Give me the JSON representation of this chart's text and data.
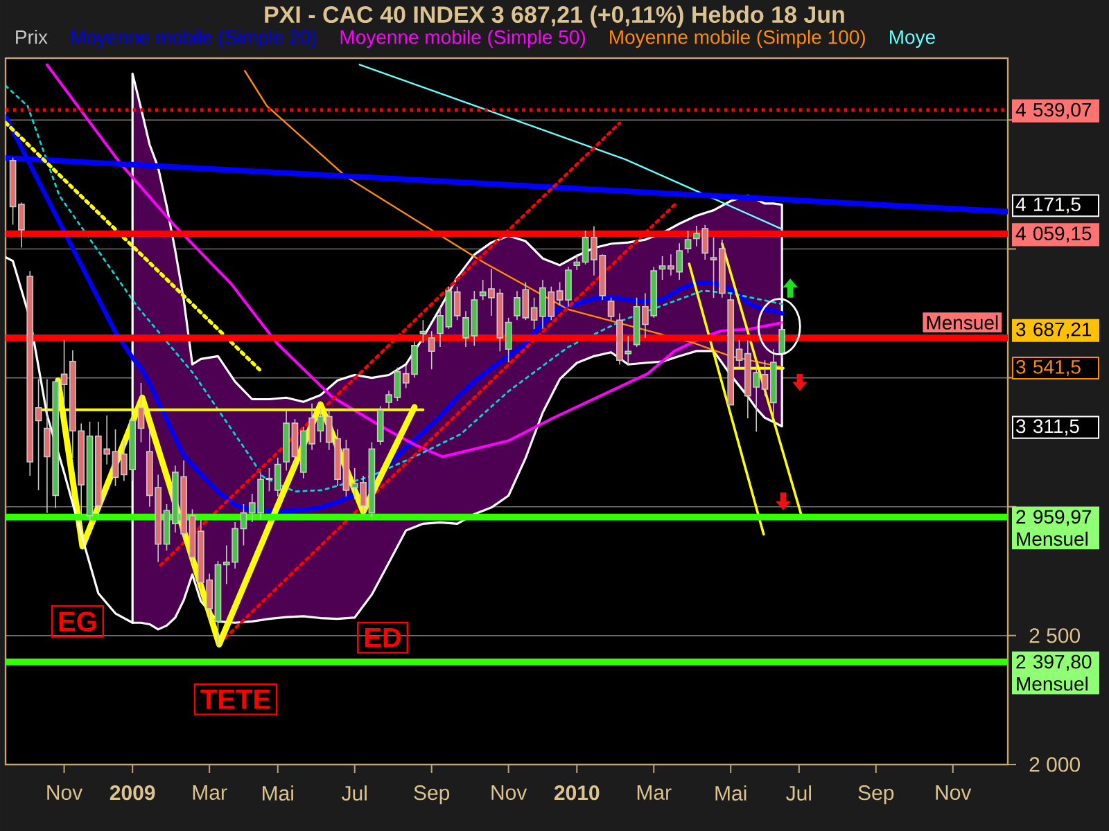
{
  "chart_data": {
    "type": "candlestick",
    "title": "PXI - CAC 40 INDEX    3 687,21 (+0,11%)    Hebdo  18 Jun",
    "xlim": [
      "2008-09-20",
      "2010-12-20"
    ],
    "ylim": [
      2000,
      4740
    ],
    "xticks": [
      {
        "value": "2008-11-07",
        "label": "Nov"
      },
      {
        "value": "2009-01-02",
        "label": "2009"
      },
      {
        "value": "2009-03-06",
        "label": "Mar"
      },
      {
        "value": "2009-05-01",
        "label": "Mai"
      },
      {
        "value": "2009-07-03",
        "label": "Jul"
      },
      {
        "value": "2009-09-04",
        "label": "Sep"
      },
      {
        "value": "2009-11-06",
        "label": "Nov"
      },
      {
        "value": "2010-01-01",
        "label": "2010"
      },
      {
        "value": "2010-03-05",
        "label": "Mar"
      },
      {
        "value": "2010-05-07",
        "label": "Mai"
      },
      {
        "value": "2010-07-02",
        "label": "Jul"
      },
      {
        "value": "2010-09-03",
        "label": "Sep"
      },
      {
        "value": "2010-11-05",
        "label": "Nov"
      }
    ],
    "yticks": [
      {
        "value": 2000,
        "label": "2 000"
      },
      {
        "value": 2500,
        "label": "2 500"
      },
      {
        "value": 3000,
        "label": null
      },
      {
        "value": 3500,
        "label": null
      },
      {
        "value": 4000,
        "label": null
      },
      {
        "value": 4500,
        "label": null
      }
    ],
    "grid": "y",
    "legend": "top left",
    "series": [
      {
        "name": "Prix",
        "type": "candlestick",
        "color": "#c8c8c8",
        "x": [
          "2008-09-26",
          "2008-10-03",
          "2008-10-10",
          "2008-10-17",
          "2008-10-24",
          "2008-10-31",
          "2008-11-07",
          "2008-11-14",
          "2008-11-21",
          "2008-11-28",
          "2008-12-05",
          "2008-12-12",
          "2008-12-19",
          "2008-12-26",
          "2009-01-02",
          "2009-01-09",
          "2009-01-16",
          "2009-01-23",
          "2009-01-30",
          "2009-02-06",
          "2009-02-13",
          "2009-02-20",
          "2009-02-27",
          "2009-03-06",
          "2009-03-13",
          "2009-03-20",
          "2009-03-27",
          "2009-04-03",
          "2009-04-10",
          "2009-04-17",
          "2009-04-24",
          "2009-05-01",
          "2009-05-08",
          "2009-05-15",
          "2009-05-22",
          "2009-05-29",
          "2009-06-05",
          "2009-06-12",
          "2009-06-19",
          "2009-06-26",
          "2009-07-03",
          "2009-07-10",
          "2009-07-17",
          "2009-07-24",
          "2009-07-31",
          "2009-08-07",
          "2009-08-14",
          "2009-08-21",
          "2009-08-28",
          "2009-09-04",
          "2009-09-11",
          "2009-09-18",
          "2009-09-25",
          "2009-10-02",
          "2009-10-09",
          "2009-10-16",
          "2009-10-23",
          "2009-10-30",
          "2009-11-06",
          "2009-11-13",
          "2009-11-20",
          "2009-11-27",
          "2009-12-04",
          "2009-12-11",
          "2009-12-18",
          "2009-12-25",
          "2010-01-01",
          "2010-01-08",
          "2010-01-15",
          "2010-01-22",
          "2010-01-29",
          "2010-02-05",
          "2010-02-12",
          "2010-02-19",
          "2010-02-26",
          "2010-03-05",
          "2010-03-12",
          "2010-03-19",
          "2010-03-26",
          "2010-04-02",
          "2010-04-09",
          "2010-04-16",
          "2010-04-23",
          "2010-04-30",
          "2010-05-07",
          "2010-05-14",
          "2010-05-21",
          "2010-05-28",
          "2010-06-04",
          "2010-06-11",
          "2010-06-18"
        ],
        "ohlc": [
          [
            4343,
            4354,
            4094,
            4164
          ],
          [
            4173,
            4180,
            4005,
            4074
          ],
          [
            3894,
            3914,
            3120,
            3174
          ],
          [
            3384,
            3495,
            3064,
            3334
          ],
          [
            3304,
            3495,
            2976,
            3194
          ],
          [
            3044,
            3495,
            2995,
            3485
          ],
          [
            3514,
            3646,
            3386,
            3474
          ],
          [
            3564,
            3607,
            3190,
            3294
          ],
          [
            3294,
            3323,
            2970,
            3085
          ],
          [
            2965,
            3330,
            2940,
            3274
          ],
          [
            3274,
            3330,
            2965,
            3004
          ],
          [
            3224,
            3354,
            3164,
            3204
          ],
          [
            3214,
            3300,
            3080,
            3114
          ],
          [
            3204,
            3260,
            3100,
            3124
          ],
          [
            3144,
            3350,
            3100,
            3334
          ],
          [
            3384,
            3480,
            3250,
            3304
          ],
          [
            3214,
            3300,
            3000,
            3044
          ],
          [
            3074,
            3124,
            2786,
            2855
          ],
          [
            2855,
            3010,
            2830,
            2985
          ],
          [
            2934,
            3160,
            2900,
            3134
          ],
          [
            3116,
            3180,
            2870,
            2895
          ],
          [
            2965,
            2990,
            2780,
            2804
          ],
          [
            2905,
            2950,
            2680,
            2706
          ],
          [
            2716,
            2740,
            2560,
            2605
          ],
          [
            2555,
            2790,
            2462,
            2775
          ],
          [
            2775,
            2850,
            2700,
            2785
          ],
          [
            2785,
            2940,
            2760,
            2915
          ],
          [
            2915,
            3010,
            2850,
            2976
          ],
          [
            2976,
            3050,
            2940,
            3015
          ],
          [
            2976,
            3130,
            2950,
            3106
          ],
          [
            3106,
            3150,
            3060,
            3110
          ],
          [
            3064,
            3190,
            3040,
            3164
          ],
          [
            3174,
            3370,
            3140,
            3324
          ],
          [
            3324,
            3340,
            3160,
            3194
          ],
          [
            3134,
            3310,
            3110,
            3294
          ],
          [
            3344,
            3400,
            3220,
            3244
          ],
          [
            3294,
            3380,
            3250,
            3350
          ],
          [
            3350,
            3380,
            3220,
            3250
          ],
          [
            3264,
            3300,
            3080,
            3106
          ],
          [
            3224,
            3260,
            3040,
            3064
          ],
          [
            3074,
            3150,
            3030,
            3090
          ],
          [
            3094,
            3120,
            2970,
            3004
          ],
          [
            2976,
            3250,
            2960,
            3224
          ],
          [
            3254,
            3390,
            3240,
            3374
          ],
          [
            3405,
            3450,
            3380,
            3434
          ],
          [
            3424,
            3540,
            3410,
            3524
          ],
          [
            3516,
            3550,
            3460,
            3480
          ],
          [
            3514,
            3640,
            3500,
            3626
          ],
          [
            3672,
            3724,
            3636,
            3680
          ],
          [
            3655,
            3681,
            3533,
            3603
          ],
          [
            3672,
            3776,
            3620,
            3741
          ],
          [
            3698,
            3854,
            3690,
            3837
          ],
          [
            3833,
            3854,
            3724,
            3741
          ],
          [
            3655,
            3759,
            3620,
            3733
          ],
          [
            3663,
            3837,
            3624,
            3802
          ],
          [
            3819,
            3880,
            3802,
            3833
          ],
          [
            3845,
            3923,
            3741,
            3811
          ],
          [
            3828,
            3845,
            3603,
            3655
          ],
          [
            3611,
            3733,
            3560,
            3715
          ],
          [
            3741,
            3837,
            3724,
            3811
          ],
          [
            3842,
            3871,
            3724,
            3733
          ],
          [
            3772,
            3811,
            3689,
            3724
          ],
          [
            3738,
            3880,
            3690,
            3849
          ],
          [
            3833,
            3854,
            3724,
            3738
          ],
          [
            3837,
            3871,
            3780,
            3802
          ],
          [
            3802,
            3930,
            3776,
            3918
          ],
          [
            3936,
            3979,
            3918,
            3949
          ],
          [
            3949,
            4070,
            3940,
            4045
          ],
          [
            4045,
            4088,
            3897,
            3958
          ],
          [
            3975,
            3979,
            3802,
            3819
          ],
          [
            3797,
            3811,
            3724,
            3738
          ],
          [
            3724,
            3750,
            3551,
            3568
          ],
          [
            3594,
            3663,
            3551,
            3603
          ],
          [
            3629,
            3811,
            3620,
            3776
          ],
          [
            3776,
            3828,
            3655,
            3707
          ],
          [
            3741,
            3930,
            3733,
            3915
          ],
          [
            3922,
            3972,
            3880,
            3934
          ],
          [
            3934,
            3979,
            3897,
            3922
          ],
          [
            3911,
            4022,
            3880,
            3993
          ],
          [
            4001,
            4070,
            3984,
            4036
          ],
          [
            4040,
            4090,
            4010,
            4060
          ],
          [
            4079,
            4093,
            3958,
            3984
          ],
          [
            3966,
            4045,
            3810,
            3958
          ],
          [
            4001,
            4036,
            3811,
            3828
          ],
          [
            3802,
            3828,
            3395,
            3395
          ],
          [
            3611,
            3646,
            3533,
            3568
          ],
          [
            3594,
            3646,
            3343,
            3430
          ],
          [
            3464,
            3576,
            3291,
            3520
          ],
          [
            3513,
            3568,
            3430,
            3456
          ],
          [
            3404,
            3611,
            3343,
            3560
          ],
          [
            3594,
            3715,
            3577,
            3687.21
          ]
        ]
      },
      {
        "name": "Moyenne mobile (Simple 20)",
        "type": "line",
        "color": "#0000ff",
        "x": [
          "2008-09-20",
          "2008-12-19",
          "2009-01-02",
          "2009-01-09",
          "2009-01-16",
          "2009-01-23",
          "2009-01-30",
          "2009-02-06",
          "2009-02-13",
          "2009-02-20",
          "2009-02-27",
          "2009-03-13",
          "2009-03-27",
          "2009-04-10",
          "2009-04-24",
          "2009-05-08",
          "2009-05-22",
          "2009-06-05",
          "2009-06-19",
          "2009-07-03",
          "2009-07-17",
          "2009-07-31",
          "2009-08-14",
          "2009-08-28",
          "2009-09-11",
          "2009-09-25",
          "2009-10-09",
          "2009-10-23",
          "2009-11-06",
          "2009-11-20",
          "2009-12-04",
          "2009-12-18",
          "2010-01-01",
          "2010-01-15",
          "2010-01-29",
          "2010-02-12",
          "2010-02-26",
          "2010-03-12",
          "2010-03-26",
          "2010-04-09",
          "2010-04-23",
          "2010-05-07",
          "2010-05-14",
          "2010-05-21",
          "2010-05-28",
          "2010-06-04",
          "2010-06-11",
          "2010-06-18"
        ],
        "values": [
          4514,
          3677,
          3578,
          3537,
          3480,
          3407,
          3339,
          3267,
          3199,
          3163,
          3126,
          3059,
          3007,
          2988,
          2984,
          2983,
          2987,
          2997,
          3017,
          3048,
          3095,
          3163,
          3230,
          3287,
          3350,
          3423,
          3485,
          3537,
          3584,
          3630,
          3714,
          3771,
          3786,
          3807,
          3812,
          3802,
          3797,
          3802,
          3843,
          3869,
          3869,
          3843,
          3823,
          3791,
          3776,
          3765,
          3760,
          3750
        ],
        "lower": [
          null,
          null,
          2550,
          2550,
          2544,
          2524,
          2539,
          2570,
          2638,
          2737,
          2633,
          2555,
          2550,
          2555,
          2565,
          2572,
          2575,
          2568,
          2565,
          2570,
          2659,
          2783,
          2908,
          2934,
          2939,
          2934,
          2971,
          2997,
          3043,
          3189,
          3365,
          3495,
          3558,
          3584,
          3599,
          3552,
          3558,
          3563,
          3584,
          3604,
          3604,
          3511,
          3469,
          3428,
          3381,
          3345,
          3329,
          3311.5
        ],
        "upper": [
          null,
          null,
          4680,
          4545,
          4405,
          4316,
          4166,
          3994,
          3802,
          3552,
          3573,
          3584,
          3485,
          3417,
          3417,
          3423,
          3407,
          3433,
          3490,
          3511,
          3500,
          3511,
          3552,
          3656,
          3771,
          3890,
          3978,
          4025,
          4051,
          4030,
          3963,
          3937,
          3973,
          4004,
          4020,
          4025,
          4036,
          4062,
          4098,
          4129,
          4150,
          4186,
          4197,
          4207,
          4192,
          4176,
          4176,
          4171.5
        ]
      },
      {
        "name": "Moyenne mobile (Simple 50)",
        "type": "line",
        "color": "#ff00ff",
        "x": [
          "2008-10-24",
          "2008-12-23",
          "2009-02-06",
          "2009-03-24",
          "2009-04-30",
          "2009-06-14",
          "2009-07-26",
          "2009-08-21",
          "2009-09-13",
          "2009-11-06",
          "2009-12-13",
          "2010-02-28",
          "2010-03-22",
          "2010-04-14",
          "2010-04-29",
          "2010-05-21",
          "2010-06-18"
        ],
        "values": [
          4714,
          4332,
          4088,
          3864,
          3636,
          3428,
          3308,
          3241,
          3194,
          3256,
          3345,
          3516,
          3604,
          3656,
          3682,
          3688,
          3714
        ]
      },
      {
        "name": "Moyenne mobile (Simple 100)",
        "type": "line",
        "color": "#ff8c00",
        "x": [
          "2009-04-04",
          "2009-04-22",
          "2009-06-26",
          "2009-10-17",
          "2009-12-25",
          "2010-04-06",
          "2010-05-07",
          "2010-06-18"
        ],
        "values": [
          4691,
          4555,
          4280,
          3947,
          3765,
          3636,
          3584,
          3541.5
        ]
      },
      {
        "name": "Moye",
        "type": "line",
        "color": "#66ffff",
        "x": [
          "2009-07-07",
          "2010-02-10",
          "2010-06-18"
        ],
        "values": [
          4715,
          4347,
          4077
        ]
      },
      {
        "type": "line",
        "color": "#00d8d8",
        "line_style": "dotted",
        "x": [
          "2008-09-20",
          "2008-10-08",
          "2008-11-03",
          "2009-01-06",
          "2009-02-21",
          "2009-04-07",
          "2009-04-19",
          "2009-05-15",
          "2009-06-06",
          "2009-07-15",
          "2009-08-21",
          "2009-09-28",
          "2009-11-06",
          "2009-12-25",
          "2010-02-08",
          "2010-04-14",
          "2010-05-07",
          "2010-06-18"
        ],
        "values": [
          4633,
          4555,
          4207,
          3776,
          3516,
          3204,
          3116,
          3059,
          3064,
          3116,
          3194,
          3282,
          3448,
          3620,
          3724,
          3838,
          3828,
          3786
        ]
      },
      {
        "type": "line",
        "color": "#0000ff",
        "x": [
          "2008-09-20",
          "2010-12-20"
        ],
        "values": [
          4353,
          4145
        ]
      },
      {
        "type": "line",
        "color": "#ffff00",
        "line_style": "dotted",
        "x": [
          "2008-09-20",
          "2009-04-16"
        ],
        "values": [
          4490,
          3532
        ]
      },
      {
        "type": "line",
        "color": "#ff0000",
        "line_style": "dotted",
        "x": [
          "2009-01-25",
          "2010-02-05"
        ],
        "values": [
          2773,
          4488
        ]
      },
      {
        "type": "line",
        "color": "#ff0000",
        "line_style": "dotted",
        "x": [
          "2009-03-19",
          "2010-03-23"
        ],
        "values": [
          2492,
          4176
        ]
      },
      {
        "type": "line",
        "color": "#ffff00",
        "x": [
          "2008-11-02",
          "2008-11-22",
          "2009-01-10",
          "2009-03-14",
          "2009-06-05",
          "2009-07-10",
          "2009-08-21"
        ],
        "values": [
          3490,
          2846,
          3423,
          2466,
          3397,
          2981,
          3386
        ]
      },
      {
        "type": "line",
        "color": "#ffff00",
        "x": [
          "2008-10-18",
          "2009-08-28"
        ],
        "values": [
          3376,
          3376
        ]
      },
      {
        "type": "line",
        "color": "#ffff00",
        "x": [
          "2010-04-03",
          "2010-06-03"
        ],
        "values": [
          3942,
          2893
        ]
      },
      {
        "type": "line",
        "color": "#ffff00",
        "x": [
          "2010-04-30",
          "2010-07-04"
        ],
        "values": [
          4020,
          2965
        ]
      },
      {
        "type": "line",
        "color": "#ffff00",
        "x": [
          "2010-05-08",
          "2010-06-19"
        ],
        "values": [
          3537,
          3537
        ]
      },
      {
        "type": "line",
        "color": "#ffffff",
        "x": [
          "2008-09-20",
          "2008-09-26",
          "2008-10-10",
          "2008-10-24",
          "2008-11-07",
          "2008-11-21",
          "2008-12-05",
          "2008-12-19",
          "2009-01-02"
        ],
        "values": [
          3968,
          3953,
          3729,
          3355,
          3132,
          2893,
          2664,
          2586,
          2550
        ]
      }
    ],
    "ref_lines": [
      {
        "axis": "y",
        "value": 4539.07,
        "label": "4 539,07",
        "color": "#ff0000",
        "line_style": "dotted"
      },
      {
        "axis": "y",
        "value": 4059.15,
        "label": "4 059,15",
        "color": "#ff0000"
      },
      {
        "axis": "y",
        "value": 3655,
        "label": "Mensuel",
        "color": "#ff0000"
      },
      {
        "axis": "y",
        "value": 2959.97,
        "label": "2 959,97 Mensuel",
        "color": "#33ff00"
      },
      {
        "axis": "y",
        "value": 2397.8,
        "label": "2 397,80 Mensuel",
        "color": "#33ff00"
      }
    ],
    "annotations": [
      "EG",
      "TETE",
      "ED",
      "4 171,5",
      "3 687,21",
      "3 541,5",
      "3 311,5"
    ]
  }
}
